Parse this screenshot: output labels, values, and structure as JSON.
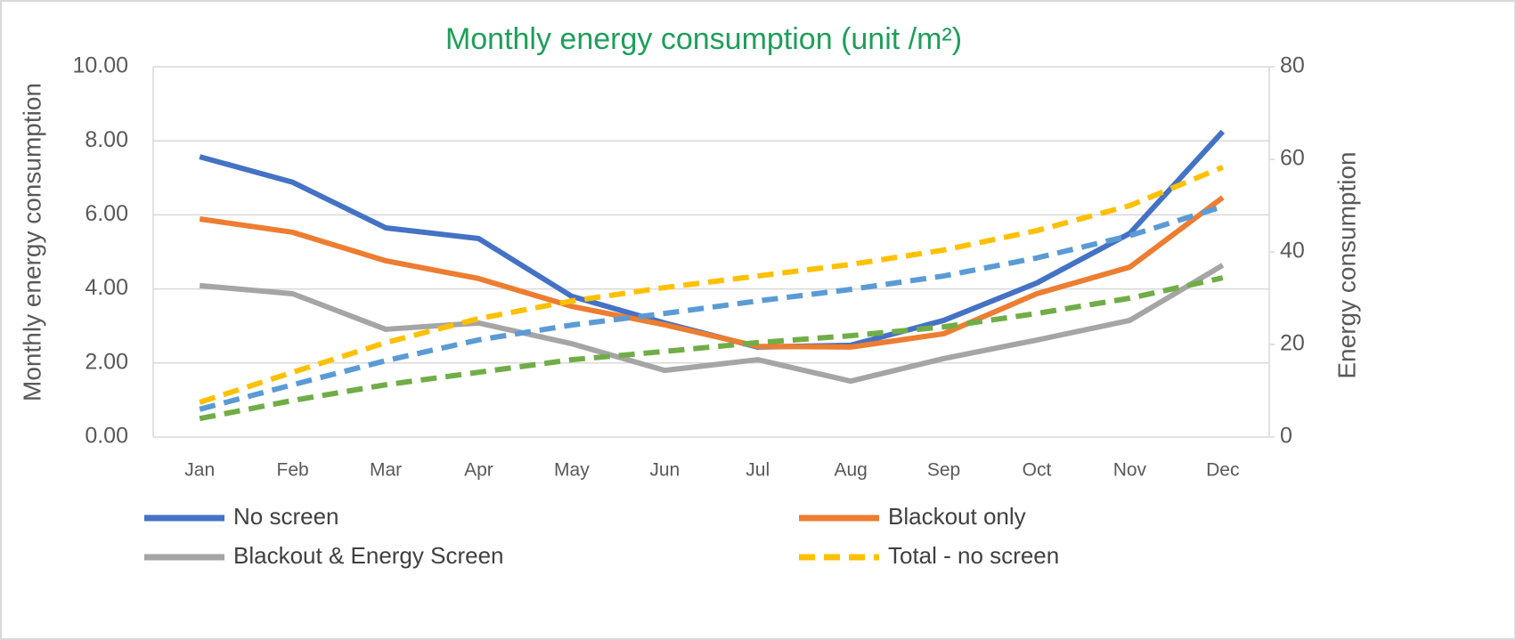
{
  "chart_data": {
    "type": "line",
    "title": "Monthly energy consumption (unit /m²)",
    "y_label": "Monthly energy consumption",
    "y2_label": "Energy consumption",
    "categories": [
      "Jan",
      "Feb",
      "Mar",
      "Apr",
      "May",
      "Jun",
      "Jul",
      "Aug",
      "Sep",
      "Oct",
      "Nov",
      "Dec"
    ],
    "ylim": [
      0,
      10
    ],
    "yticks": [
      {
        "value": 0,
        "label": "0.00"
      },
      {
        "value": 2,
        "label": "2.00"
      },
      {
        "value": 4,
        "label": "4.00"
      },
      {
        "value": 6,
        "label": "6.00"
      },
      {
        "value": 8,
        "label": "8.00"
      },
      {
        "value": 10,
        "label": "10.00"
      }
    ],
    "y2lim": [
      0,
      80
    ],
    "y2ticks": [
      0,
      20,
      40,
      60,
      80
    ],
    "grid": true,
    "legend": "bottom",
    "series": [
      {
        "name": "No screen",
        "color": "#4472c4",
        "dashed": false,
        "values": [
          7.57,
          6.88,
          5.65,
          5.36,
          3.8,
          3.08,
          2.43,
          2.48,
          3.15,
          4.16,
          5.5,
          8.25
        ]
      },
      {
        "name": "Blackout only",
        "color": "#ed7d31",
        "dashed": false,
        "values": [
          5.89,
          5.53,
          4.76,
          4.28,
          3.53,
          3.03,
          2.45,
          2.43,
          2.79,
          3.87,
          4.59,
          6.47
        ]
      },
      {
        "name": "Blackout & Energy Screen",
        "color": "#a5a5a5",
        "dashed": false,
        "values": [
          4.09,
          3.87,
          2.91,
          3.08,
          2.52,
          1.8,
          2.09,
          1.51,
          2.12,
          2.62,
          3.15,
          4.64
        ]
      },
      {
        "name": "Total - no screen",
        "color": "#ffc000",
        "dashed": true,
        "axis": "y2",
        "values": [
          7.5,
          14,
          20.4,
          25.6,
          29.4,
          32.3,
          34.8,
          37.3,
          40.4,
          44.6,
          50,
          58.3
        ]
      },
      {
        "color": "#5b9bd5",
        "dashed": true,
        "axis": "y2",
        "values": [
          6,
          11.3,
          16.5,
          21,
          24.2,
          26.7,
          29.4,
          31.9,
          34.8,
          38.7,
          43.5,
          49.8
        ]
      },
      {
        "color": "#70ad47",
        "dashed": true,
        "axis": "y2",
        "values": [
          4,
          7.9,
          11.3,
          14,
          16.7,
          18.5,
          20.4,
          21.9,
          23.8,
          26.7,
          30,
          34.4
        ]
      }
    ]
  }
}
